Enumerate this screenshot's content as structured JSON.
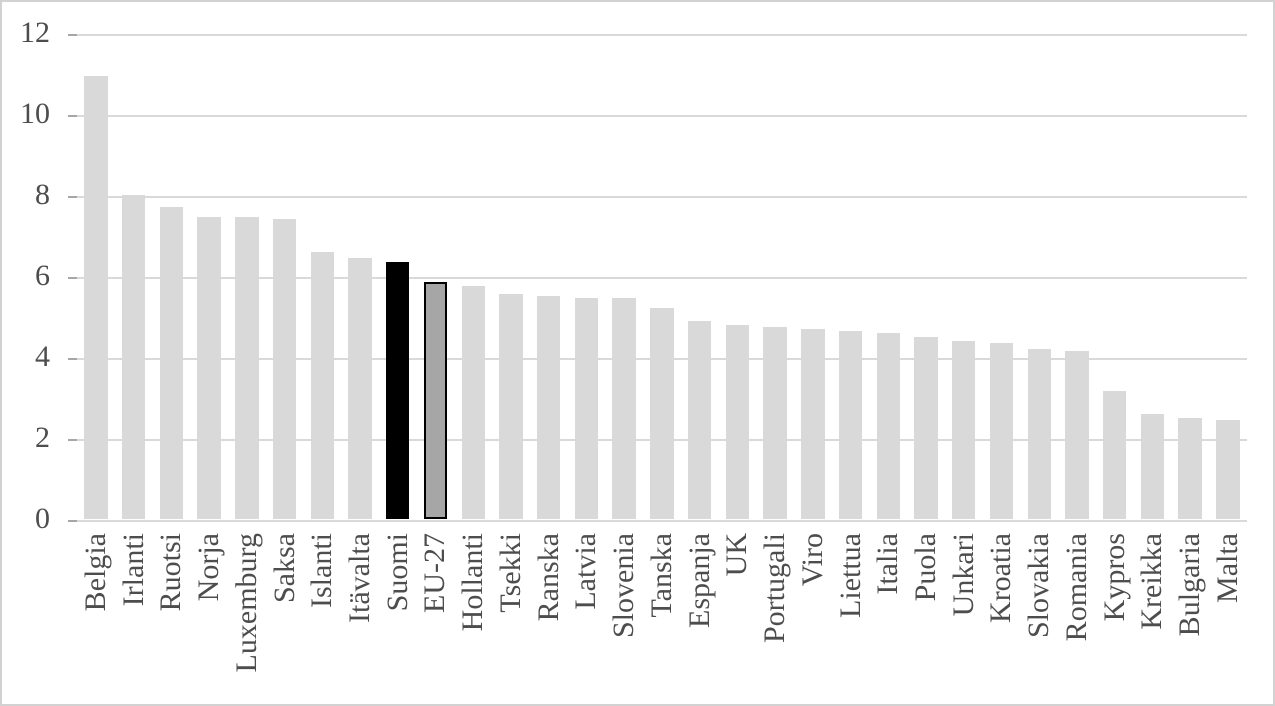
{
  "figure_border_color": "#d2d2d2",
  "chart_data": {
    "type": "bar",
    "title": "",
    "xlabel": "",
    "ylabel": "",
    "ylim": [
      0,
      12
    ],
    "y_ticks": [
      0,
      2,
      4,
      6,
      8,
      10,
      12
    ],
    "grid": "horizontal",
    "legend": "none",
    "categories": [
      "Belgia",
      "Irlanti",
      "Ruotsi",
      "Norja",
      "Luxemburg",
      "Saksa",
      "Islanti",
      "Itävalta",
      "Suomi",
      "EU-27",
      "Hollanti",
      "Tsekki",
      "Ranska",
      "Latvia",
      "Slovenia",
      "Tanska",
      "Espanja",
      "UK",
      "Portugali",
      "Viro",
      "Liettua",
      "Italia",
      "Puola",
      "Unkari",
      "Kroatia",
      "Slovakia",
      "Romania",
      "Kypros",
      "Kreikka",
      "Bulgaria",
      "Malta"
    ],
    "values": [
      10.95,
      8.0,
      7.7,
      7.45,
      7.45,
      7.4,
      6.6,
      6.45,
      6.35,
      5.85,
      5.75,
      5.55,
      5.5,
      5.45,
      5.45,
      5.2,
      4.9,
      4.8,
      4.75,
      4.7,
      4.65,
      4.6,
      4.5,
      4.4,
      4.35,
      4.2,
      4.15,
      3.15,
      2.6,
      2.5,
      2.45
    ],
    "highlight": {
      "solid_black_label": "Suomi",
      "outlined_gray_label": "EU-27"
    },
    "colors": {
      "default_bar": "#d9d9d9",
      "highlight_bar": "#000000",
      "outlined_bar_fill": "#a6a6a6",
      "outlined_bar_border": "#000000",
      "gridline": "#d9d9d9",
      "axis_tick": "#a6a6a6",
      "axis_text": "#4d4d4d"
    }
  }
}
